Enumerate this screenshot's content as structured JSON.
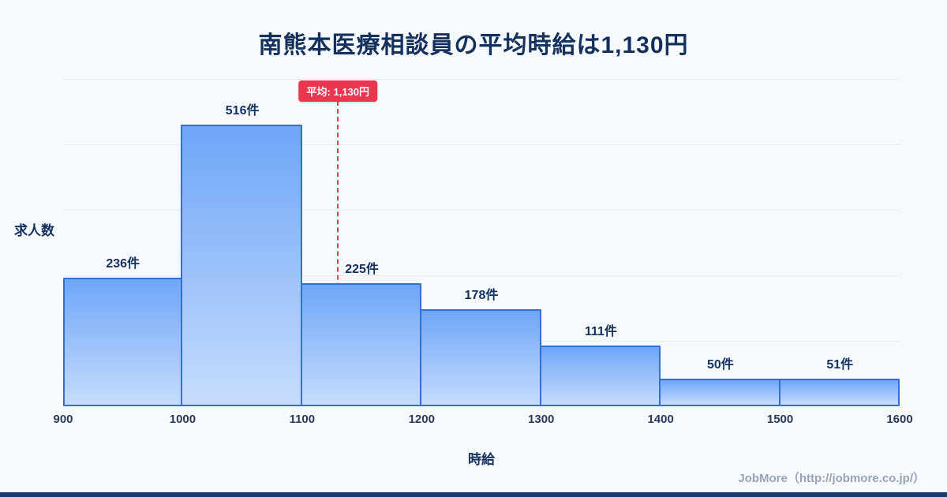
{
  "title": "南熊本医療相談員の平均時給は1,130円",
  "chart_data": {
    "type": "bar",
    "subtype": "histogram",
    "title": "南熊本医療相談員の平均時給は1,130円",
    "xlabel": "時給",
    "ylabel": "求人数",
    "bin_edges": [
      900,
      1000,
      1100,
      1200,
      1300,
      1400,
      1500,
      1600
    ],
    "categories": [
      "900-1000",
      "1000-1100",
      "1100-1200",
      "1200-1300",
      "1300-1400",
      "1400-1500",
      "1500-1600"
    ],
    "values": [
      236,
      516,
      225,
      178,
      111,
      50,
      51
    ],
    "bar_labels": [
      "236件",
      "516件",
      "225件",
      "178件",
      "111件",
      "50件",
      "51件"
    ],
    "x_ticks": [
      "900",
      "1000",
      "1100",
      "1200",
      "1300",
      "1400",
      "1500",
      "1600"
    ],
    "xlim": [
      900,
      1600
    ],
    "ylim": [
      0,
      600
    ],
    "grid": "horizontal",
    "legend": "none",
    "average": {
      "value": 1130,
      "label": "平均: 1,130円"
    }
  },
  "footer": {
    "credit": "JobMore（http://jobmore.co.jp/）"
  },
  "colors": {
    "background": "#f7fafd",
    "title": "#14315e",
    "bar_fill_top": "#6ea6f8",
    "bar_fill_bottom": "#c6dcfc",
    "bar_border": "#2f6fd6",
    "average_line": "#e8374e",
    "badge_bg": "#e8374e",
    "badge_text": "#ffffff",
    "grid_line": "#e7edf5",
    "tick_text": "#2b3a55",
    "footer_text": "#97a3b6",
    "bottom_bar": "#1c3a6b"
  }
}
